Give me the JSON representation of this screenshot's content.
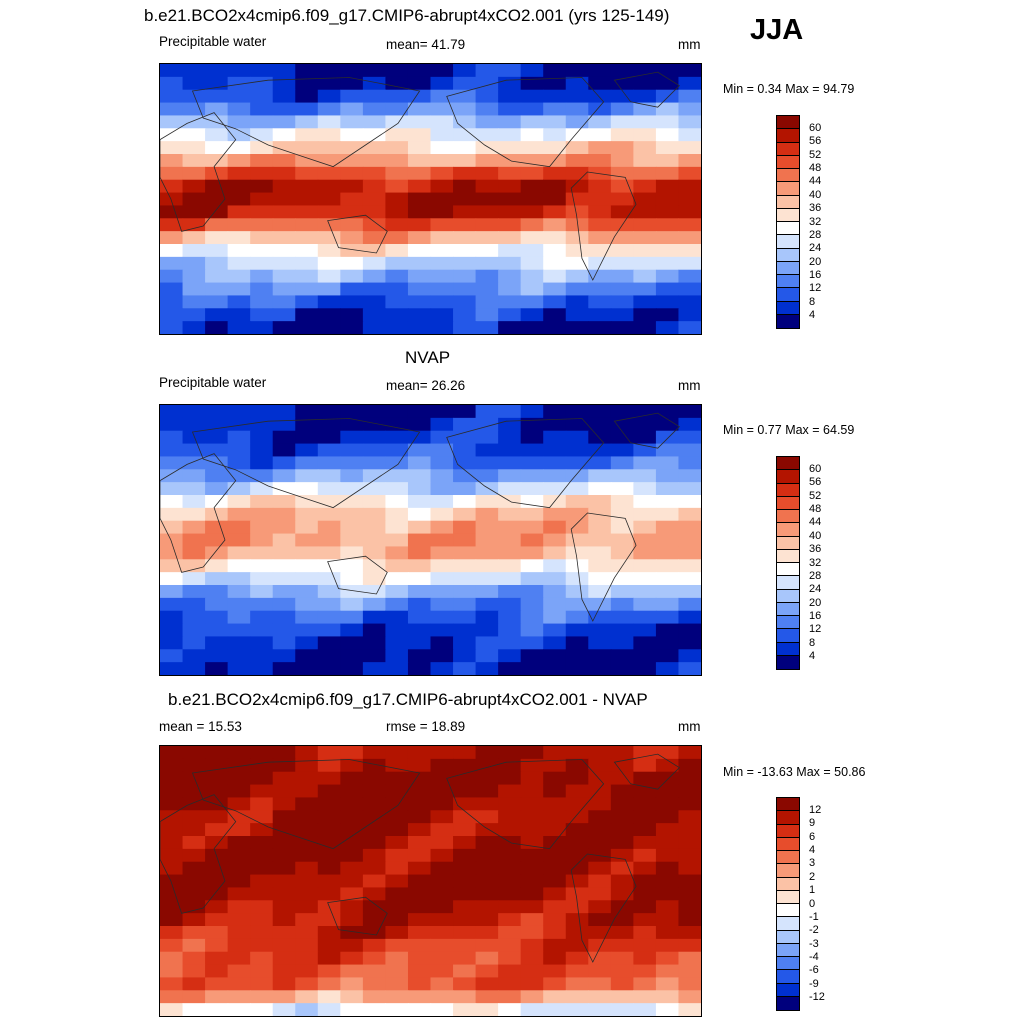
{
  "season": "JJA",
  "palette": {
    "warm": [
      "#fde3d2",
      "#fbc2a6",
      "#f79a78",
      "#f0734f",
      "#e74d2c",
      "#d52e13",
      "#b31400",
      "#8a0800"
    ],
    "cool": [
      "#00007d",
      "#0015a8",
      "#0030d0",
      "#2458e8",
      "#4f80f2",
      "#7ba4f8",
      "#a8c6fb",
      "#d5e4fd"
    ],
    "land": "#2b2b2b"
  },
  "chart_data": [
    {
      "type": "heatmap",
      "id": "model",
      "title": "b.e21.BCO2x4cmip6.f09_g17.CMIP6-abrupt4xCO2.001 (yrs 125-149)",
      "left_label": "Precipitable water",
      "center_label": "mean=  41.79",
      "units": "mm",
      "minmax": "Min =   0.34 Max =  94.79",
      "mean": 41.79,
      "min": 0.34,
      "max": 94.79,
      "levels": [
        "60",
        "56",
        "52",
        "48",
        "44",
        "40",
        "36",
        "32",
        "28",
        "24",
        "20",
        "16",
        "12",
        "8",
        "4"
      ],
      "colorbar_colors": [
        "#8a0800",
        "#b31400",
        "#d52e13",
        "#e74d2c",
        "#f0734f",
        "#f79a78",
        "#fbc2a6",
        "#fde3d2",
        "#ffffff",
        "#d5e4fd",
        "#a8c6fb",
        "#7ba4f8",
        "#4f80f2",
        "#2458e8",
        "#0030d0",
        "#00007d"
      ],
      "field_profile": [
        0.02,
        0.05,
        0.12,
        0.22,
        0.35,
        0.48,
        0.58,
        0.7,
        0.85,
        0.97,
        1.0,
        0.96,
        0.82,
        0.66,
        0.52,
        0.4,
        0.3,
        0.22,
        0.14,
        0.08,
        0.03
      ],
      "field_scale": 0.95
    },
    {
      "type": "heatmap",
      "id": "obs",
      "title": "NVAP",
      "left_label": "Precipitable water",
      "center_label": "mean=  26.26",
      "units": "mm",
      "minmax": "Min =   0.77 Max =  64.59",
      "mean": 26.26,
      "min": 0.77,
      "max": 64.59,
      "levels": [
        "60",
        "56",
        "52",
        "48",
        "44",
        "40",
        "36",
        "32",
        "28",
        "24",
        "20",
        "16",
        "12",
        "8",
        "4"
      ],
      "colorbar_colors": [
        "#8a0800",
        "#b31400",
        "#d52e13",
        "#e74d2c",
        "#f0734f",
        "#f79a78",
        "#fbc2a6",
        "#fde3d2",
        "#ffffff",
        "#d5e4fd",
        "#a8c6fb",
        "#7ba4f8",
        "#4f80f2",
        "#2458e8",
        "#0030d0",
        "#00007d"
      ],
      "field_profile": [
        0.02,
        0.04,
        0.07,
        0.12,
        0.2,
        0.3,
        0.42,
        0.55,
        0.66,
        0.72,
        0.74,
        0.7,
        0.58,
        0.46,
        0.34,
        0.24,
        0.16,
        0.1,
        0.06,
        0.03,
        0.02
      ],
      "field_scale": 0.9
    },
    {
      "type": "heatmap",
      "id": "diff",
      "title": "b.e21.BCO2x4cmip6.f09_g17.CMIP6-abrupt4xCO2.001 - NVAP",
      "left_label": "mean =  15.53",
      "center_label": "rmse =  18.89",
      "units": "mm",
      "minmax": "Min = -13.63 Max =  50.86",
      "mean": 15.53,
      "rmse": 18.89,
      "min": -13.63,
      "max": 50.86,
      "levels": [
        "12",
        "9",
        "6",
        "4",
        "3",
        "2",
        "1",
        "0",
        "-1",
        "-2",
        "-3",
        "-4",
        "-6",
        "-9",
        "-12"
      ],
      "colorbar_colors": [
        "#8a0800",
        "#b31400",
        "#d52e13",
        "#e74d2c",
        "#f0734f",
        "#f79a78",
        "#fbc2a6",
        "#fde3d2",
        "#ffffff",
        "#d5e4fd",
        "#a8c6fb",
        "#7ba4f8",
        "#4f80f2",
        "#2458e8",
        "#0030d0",
        "#00007d"
      ],
      "field_profile": [
        0.95,
        0.98,
        1.0,
        1.0,
        0.98,
        0.96,
        0.95,
        0.96,
        0.97,
        0.98,
        0.98,
        0.97,
        0.95,
        0.92,
        0.88,
        0.85,
        0.82,
        0.8,
        0.78,
        0.65,
        0.45
      ],
      "field_scale": 1.0
    }
  ]
}
